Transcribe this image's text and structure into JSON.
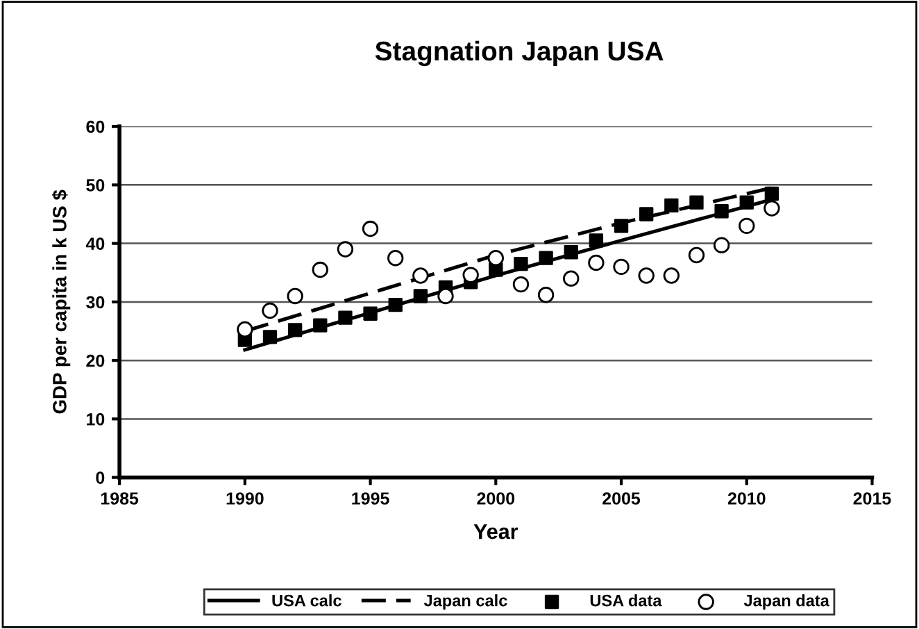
{
  "chart_data": {
    "type": "line",
    "title": "Stagnation Japan USA",
    "xlabel": "Year",
    "ylabel": "GDP per capita in k US $",
    "xlim": [
      1985,
      2015
    ],
    "xticks": [
      1985,
      1990,
      1995,
      2000,
      2005,
      2010,
      2015
    ],
    "ylim": [
      0,
      60
    ],
    "yticks": [
      0,
      10,
      20,
      30,
      40,
      50,
      60
    ],
    "grid": "y",
    "legend": "bottom",
    "series": [
      {
        "name": "USA calc",
        "line_style": "solid",
        "marker": "none",
        "color": "#000000",
        "x": [
          1990,
          2000,
          2005,
          2011
        ],
        "values": [
          21.8,
          34.5,
          40.5,
          47.5
        ]
      },
      {
        "name": "Japan calc",
        "line_style": "dashed",
        "marker": "none",
        "color": "#000000",
        "x": [
          1990,
          2000,
          2005,
          2011
        ],
        "values": [
          25,
          38,
          43.5,
          49.5
        ]
      },
      {
        "name": "USA data",
        "type": "scatter",
        "marker": "square",
        "color": "#000000",
        "x": [
          1990,
          1991,
          1992,
          1993,
          1994,
          1995,
          1996,
          1997,
          1998,
          1999,
          2000,
          2001,
          2002,
          2003,
          2004,
          2005,
          2006,
          2007,
          2008,
          2009,
          2010,
          2011
        ],
        "values": [
          23.5,
          24,
          25.2,
          26,
          27.3,
          28,
          29.5,
          31,
          32.5,
          33.4,
          35.5,
          36.5,
          37.5,
          38.5,
          40.5,
          43,
          45,
          46.5,
          47,
          45.5,
          47,
          48.5
        ]
      },
      {
        "name": "Japan data",
        "type": "scatter",
        "marker": "circle",
        "color": "#ffffff",
        "x": [
          1990,
          1991,
          1992,
          1993,
          1994,
          1995,
          1996,
          1997,
          1998,
          1999,
          2000,
          2001,
          2002,
          2003,
          2004,
          2005,
          2006,
          2007,
          2008,
          2009,
          2010,
          2011
        ],
        "values": [
          25.3,
          28.5,
          31,
          35.5,
          39,
          42.5,
          37.5,
          34.5,
          31,
          34.6,
          37.5,
          33,
          31.2,
          34,
          36.7,
          36,
          34.5,
          34.5,
          38,
          39.7,
          43,
          46
        ]
      }
    ]
  }
}
